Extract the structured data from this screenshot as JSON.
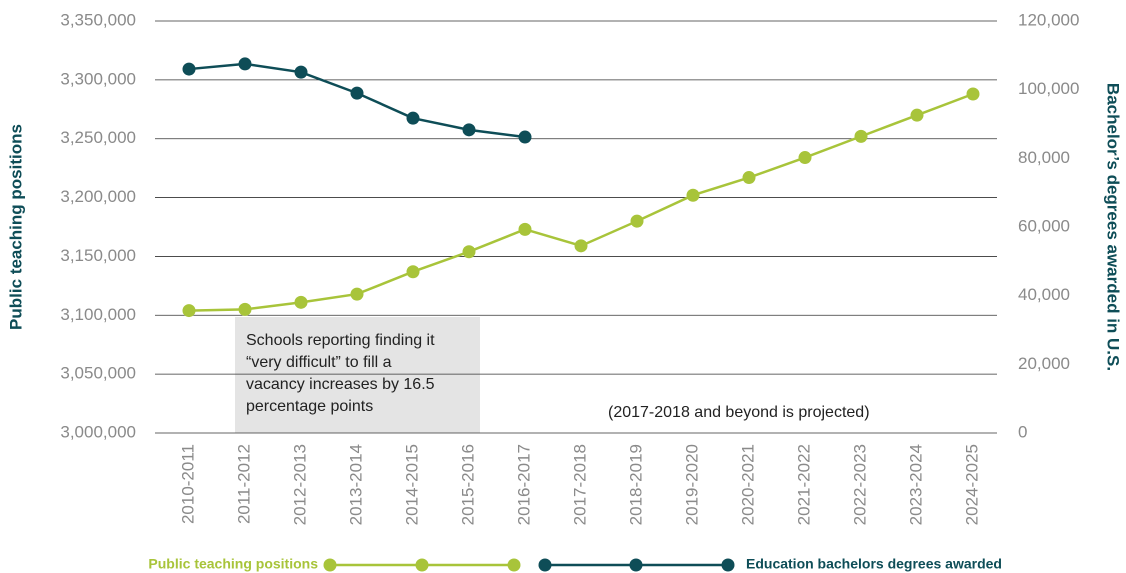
{
  "chart_data": {
    "type": "line",
    "categories": [
      "2010-2011",
      "2011-2012",
      "2012-2013",
      "2013-2014",
      "2014-2015",
      "2015-2016",
      "2016-2017",
      "2017-2018",
      "2018-2019",
      "2019-2020",
      "2020-2021",
      "2021-2022",
      "2022-2023",
      "2023-2024",
      "2024-2025"
    ],
    "series": [
      {
        "name": "Public teaching positions",
        "color": "#a8c43a",
        "axis": "y",
        "values": [
          3104000,
          3105000,
          3111000,
          3118000,
          3137000,
          3154000,
          3173000,
          3159000,
          3180000,
          3202000,
          3217000,
          3234000,
          3252000,
          3270000,
          3288000
        ]
      },
      {
        "name": "Education bachelors degrees awarded",
        "color": "#0e4d57",
        "axis": "y2",
        "values": [
          106000,
          107500,
          105100,
          99000,
          91700,
          88300,
          86200,
          null,
          null,
          null,
          null,
          null,
          null,
          null,
          null
        ]
      }
    ],
    "ylabel": "Public teaching positions",
    "y2label": "Bachelor’s degrees awarded in U.S.",
    "ylim": [
      3000000,
      3350000
    ],
    "yticks": [
      {
        "value": 3000000,
        "label": "3,000,000"
      },
      {
        "value": 3050000,
        "label": "3,050,000"
      },
      {
        "value": 3100000,
        "label": "3,100,000"
      },
      {
        "value": 3150000,
        "label": "3,150,000"
      },
      {
        "value": 3200000,
        "label": "3,200,000"
      },
      {
        "value": 3250000,
        "label": "3,250,000"
      },
      {
        "value": 3300000,
        "label": "3,300,000"
      },
      {
        "value": 3350000,
        "label": "3,350,000"
      }
    ],
    "y2lim": [
      0,
      120000
    ],
    "y2ticks": [
      0,
      {
        "value": 20000,
        "label": "20,000"
      },
      {
        "value": 40000,
        "label": "40,000"
      },
      {
        "value": 60000,
        "label": "60,000"
      },
      {
        "value": 80000,
        "label": "80,000"
      },
      {
        "value": 100000,
        "label": "100,000"
      },
      {
        "value": 120000,
        "label": "120,000"
      }
    ],
    "grid": true,
    "legend": "bottom",
    "annotations": [
      {
        "lines": [
          "Schools reporting finding it",
          "“very difficult” to fill a",
          "vacancy increases by 16.5",
          "percentage points"
        ]
      },
      {
        "text": "(2017-2018 and beyond is projected)"
      }
    ]
  }
}
